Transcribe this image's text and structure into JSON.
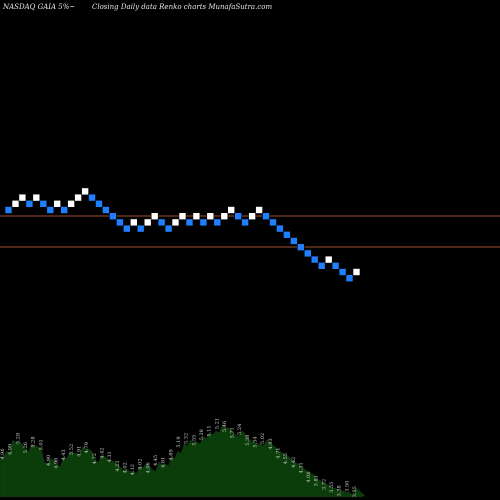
{
  "header": {
    "left": "NASDAQ GAIA 5%~",
    "right": "Closing Daily data  Renko  charts MunafaSutra.com"
  },
  "colors": {
    "background": "#000000",
    "up_brick": "#ffffff",
    "down_brick": "#1f7fff",
    "brick_edge": "#000000",
    "level_line": "#a0522d",
    "volume_fill": "#0a3d0a",
    "volume_line": "#1f1f1f"
  },
  "chart_data": {
    "type": "renko",
    "brick_size_label": "5%",
    "bricks": [
      {
        "dir": "down",
        "level": 0
      },
      {
        "dir": "up",
        "level": 1
      },
      {
        "dir": "up",
        "level": 2
      },
      {
        "dir": "down",
        "level": 1
      },
      {
        "dir": "up",
        "level": 2
      },
      {
        "dir": "down",
        "level": 1
      },
      {
        "dir": "down",
        "level": 0
      },
      {
        "dir": "up",
        "level": 1
      },
      {
        "dir": "down",
        "level": 0
      },
      {
        "dir": "up",
        "level": 1
      },
      {
        "dir": "up",
        "level": 2
      },
      {
        "dir": "up",
        "level": 3
      },
      {
        "dir": "down",
        "level": 2
      },
      {
        "dir": "down",
        "level": 1
      },
      {
        "dir": "down",
        "level": 0
      },
      {
        "dir": "down",
        "level": -1
      },
      {
        "dir": "down",
        "level": -2
      },
      {
        "dir": "down",
        "level": -3
      },
      {
        "dir": "up",
        "level": -2
      },
      {
        "dir": "down",
        "level": -3
      },
      {
        "dir": "up",
        "level": -2
      },
      {
        "dir": "up",
        "level": -1
      },
      {
        "dir": "down",
        "level": -2
      },
      {
        "dir": "down",
        "level": -3
      },
      {
        "dir": "up",
        "level": -2
      },
      {
        "dir": "up",
        "level": -1
      },
      {
        "dir": "down",
        "level": -2
      },
      {
        "dir": "up",
        "level": -1
      },
      {
        "dir": "down",
        "level": -2
      },
      {
        "dir": "up",
        "level": -1
      },
      {
        "dir": "down",
        "level": -2
      },
      {
        "dir": "up",
        "level": -1
      },
      {
        "dir": "up",
        "level": 0
      },
      {
        "dir": "down",
        "level": -1
      },
      {
        "dir": "down",
        "level": -2
      },
      {
        "dir": "up",
        "level": -1
      },
      {
        "dir": "up",
        "level": 0
      },
      {
        "dir": "down",
        "level": -1
      },
      {
        "dir": "down",
        "level": -2
      },
      {
        "dir": "down",
        "level": -3
      },
      {
        "dir": "down",
        "level": -4
      },
      {
        "dir": "down",
        "level": -5
      },
      {
        "dir": "down",
        "level": -6
      },
      {
        "dir": "down",
        "level": -7
      },
      {
        "dir": "down",
        "level": -8
      },
      {
        "dir": "down",
        "level": -9
      },
      {
        "dir": "up",
        "level": -8
      },
      {
        "dir": "down",
        "level": -9
      },
      {
        "dir": "down",
        "level": -10
      },
      {
        "dir": "down",
        "level": -11
      },
      {
        "dir": "up",
        "level": -10
      }
    ],
    "volume_labels": [
      "4.96",
      "4.99",
      "5.28",
      "5.26",
      "5.28",
      "5.01",
      "4.90",
      "4.96",
      "4.43",
      "5.52",
      "4.91",
      "4.79",
      "4.72",
      "4.42",
      "4.31",
      "4.22",
      "4.02",
      "4.12",
      "4.02",
      "4.06",
      "4.45",
      "4.81",
      "4.89",
      "5.19",
      "5.32",
      "5.55",
      "5.38",
      "5.11",
      "5.21",
      "5.46",
      "5.71",
      "5.24",
      "5.38",
      "5.34",
      "5.02",
      "4.93",
      "4.71",
      "4.55",
      "4.42",
      "4.31",
      "4.06",
      "3.81",
      "3.72",
      "3.55",
      "3.38",
      "3.50",
      "3.35"
    ],
    "volume_heights": [
      0.45,
      0.5,
      0.62,
      0.6,
      0.52,
      0.58,
      0.55,
      0.38,
      0.42,
      0.35,
      0.44,
      0.5,
      0.48,
      0.55,
      0.52,
      0.4,
      0.46,
      0.42,
      0.38,
      0.32,
      0.3,
      0.28,
      0.34,
      0.36,
      0.3,
      0.38,
      0.36,
      0.44,
      0.5,
      0.58,
      0.62,
      0.6,
      0.66,
      0.7,
      0.72,
      0.78,
      0.75,
      0.68,
      0.72,
      0.64,
      0.6,
      0.58,
      0.62,
      0.56,
      0.5,
      0.46,
      0.4,
      0.36,
      0.3,
      0.26,
      0.2,
      0.16,
      0.12,
      0.09,
      0.07,
      0.05,
      0.1,
      0.04
    ],
    "reference_levels": [
      0,
      -5
    ]
  }
}
